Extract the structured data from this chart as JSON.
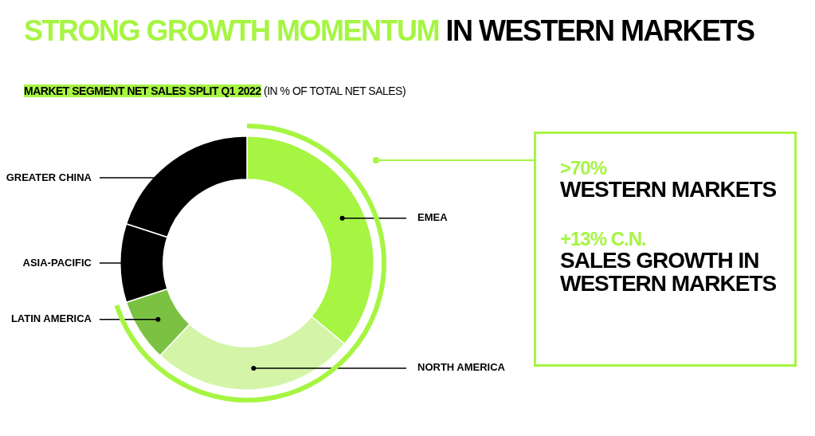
{
  "chart_data": {
    "type": "donut",
    "title": "STRONG GROWTH MOMENTUM IN WESTERN MARKETS",
    "subtitle": "MARKET SEGMENT NET SALES SPLIT Q1 2022 (IN % OF TOTAL NET SALES)",
    "categories": [
      "EMEA",
      "NORTH AMERICA",
      "LATIN AMERICA",
      "ASIA-PACIFIC",
      "GREATER CHINA"
    ],
    "values": [
      36,
      26,
      8,
      10,
      20
    ],
    "colors": [
      "#a6f542",
      "#d4f5a8",
      "#7cc242",
      "#000000",
      "#000000"
    ],
    "legend": false,
    "annotations": [
      ">70%",
      "WESTERN MARKETS",
      "+13% C.N.",
      "SALES GROWTH IN WESTERN MARKETS"
    ]
  }
}
